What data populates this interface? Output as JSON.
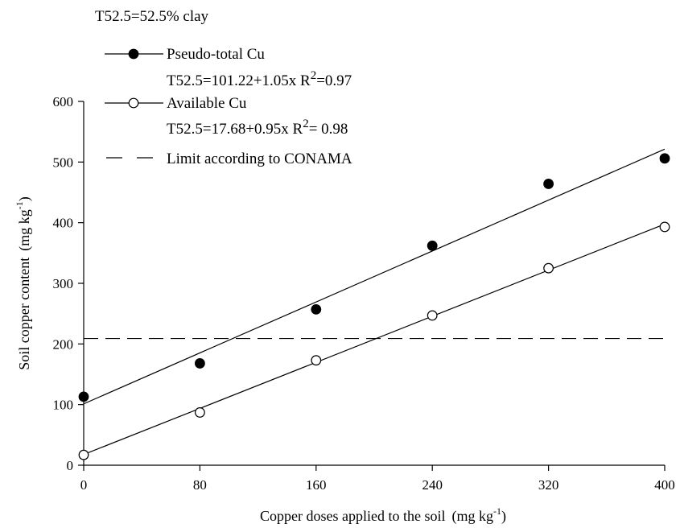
{
  "chart_data": {
    "type": "scatter",
    "note_text": "T52.5=52.5% clay",
    "xlabel": "Copper doses applied to the soil",
    "xlabel_unit": "(mg kg",
    "xlabel_unit_sup": "-1",
    "xlabel_unit_close": ")",
    "ylabel": "Soil copper content",
    "ylabel_unit": "(mg kg",
    "ylabel_unit_sup": "-1",
    "ylabel_unit_close": ")",
    "x_ticks": [
      "0",
      "80",
      "160",
      "240",
      "320",
      "400"
    ],
    "y_ticks": [
      "0",
      "100",
      "200",
      "300",
      "400",
      "500",
      "600"
    ],
    "xlim": [
      0,
      400
    ],
    "ylim": [
      0,
      600
    ],
    "grid": false,
    "legend_position": "top-left",
    "series": [
      {
        "name": "Pseudo-total  Cu",
        "marker": "filled-circle",
        "color": "#000000",
        "equation": "T52.5=101.22+1.05x R",
        "r2_sup": "2",
        "r2_value": "=0.97",
        "fit": {
          "intercept": 101.22,
          "slope": 1.05
        },
        "x": [
          0,
          80,
          160,
          240,
          320,
          400
        ],
        "y": [
          113,
          168,
          257,
          362,
          464,
          506
        ]
      },
      {
        "name": "Available Cu",
        "marker": "open-circle",
        "color": "#000000",
        "equation": "T52.5=17.68+0.95x R",
        "r2_sup": "2",
        "r2_value": "= 0.98",
        "fit": {
          "intercept": 17.68,
          "slope": 0.95
        },
        "x": [
          0,
          80,
          160,
          240,
          320,
          400
        ],
        "y": [
          17,
          87,
          173,
          247,
          325,
          393
        ]
      },
      {
        "name": "Limit according to CONAMA",
        "marker": "dashed-line",
        "color": "#000000",
        "value": 209
      }
    ]
  }
}
